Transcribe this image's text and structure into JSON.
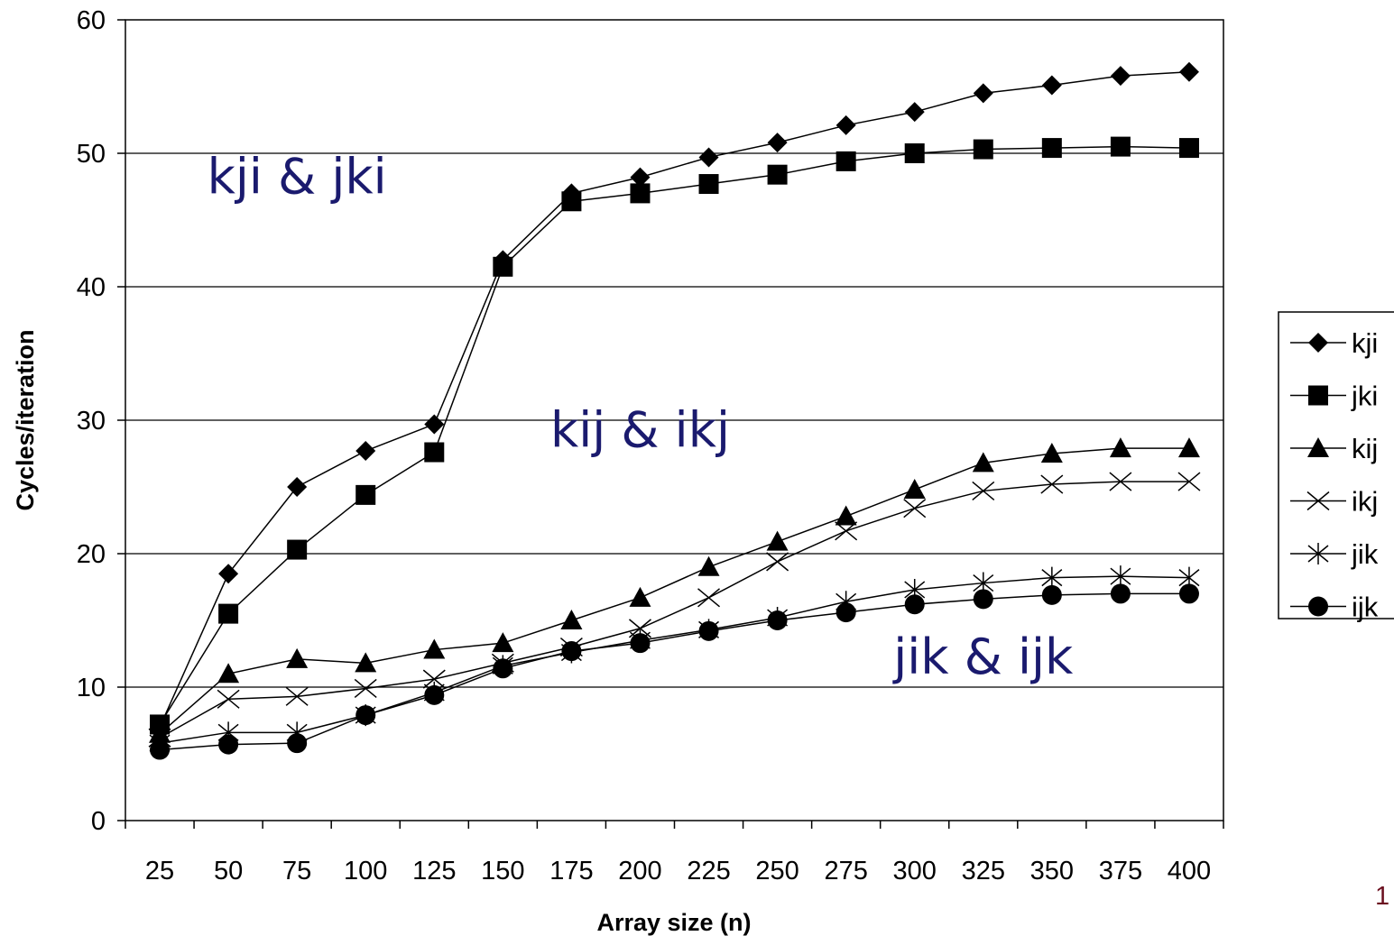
{
  "chart_data": {
    "type": "line",
    "title": "",
    "xlabel": "Array size (n)",
    "ylabel": "Cycles/iteration",
    "ylim": [
      0,
      60
    ],
    "yticks": [
      0,
      10,
      20,
      30,
      40,
      50,
      60
    ],
    "grid": "horizontal",
    "legend_position": "right",
    "categories": [
      "25",
      "50",
      "75",
      "100",
      "125",
      "150",
      "175",
      "200",
      "225",
      "250",
      "275",
      "300",
      "325",
      "350",
      "375",
      "400"
    ],
    "series": [
      {
        "name": "kji",
        "marker": "diamond",
        "values": [
          7.0,
          18.5,
          25.0,
          27.7,
          29.7,
          42.0,
          47.0,
          48.2,
          49.7,
          50.8,
          52.1,
          53.1,
          54.5,
          55.1,
          55.8,
          56.1
        ]
      },
      {
        "name": "jki",
        "marker": "square",
        "values": [
          7.2,
          15.5,
          20.3,
          24.4,
          27.6,
          41.5,
          46.4,
          47.0,
          47.7,
          48.4,
          49.4,
          50.0,
          50.3,
          50.4,
          50.5,
          50.4
        ]
      },
      {
        "name": "kij",
        "marker": "triangle",
        "values": [
          6.5,
          11.0,
          12.1,
          11.8,
          12.8,
          13.3,
          15.0,
          16.7,
          19.0,
          20.9,
          22.8,
          24.8,
          26.8,
          27.5,
          27.9,
          27.9
        ]
      },
      {
        "name": "ikj",
        "marker": "x",
        "values": [
          6.2,
          9.1,
          9.3,
          9.9,
          10.6,
          11.8,
          13.0,
          14.4,
          16.7,
          19.4,
          21.7,
          23.4,
          24.7,
          25.2,
          25.4,
          25.4
        ]
      },
      {
        "name": "jik",
        "marker": "star",
        "values": [
          5.8,
          6.6,
          6.6,
          7.9,
          9.6,
          11.6,
          12.6,
          13.5,
          14.3,
          15.2,
          16.4,
          17.3,
          17.8,
          18.2,
          18.3,
          18.2
        ]
      },
      {
        "name": "ijk",
        "marker": "circle",
        "values": [
          5.3,
          5.7,
          5.8,
          7.9,
          9.4,
          11.4,
          12.7,
          13.3,
          14.2,
          15.0,
          15.6,
          16.2,
          16.6,
          16.9,
          17.0,
          17.0
        ]
      }
    ],
    "annotations": [
      {
        "text": "kji & jki",
        "anchor_x": "75",
        "anchor_y": 47
      },
      {
        "text": "kij & ikj",
        "anchor_x": "200",
        "anchor_y": 28
      },
      {
        "text": "jik & ijk",
        "anchor_x": "325",
        "anchor_y": 11
      }
    ]
  },
  "page_number": "1"
}
